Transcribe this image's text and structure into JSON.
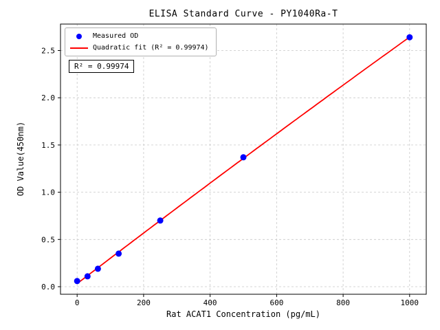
{
  "figure": {
    "background": "#ffffff"
  },
  "chart_data": {
    "type": "scatter",
    "title": "ELISA Standard Curve - PY1040Ra-T",
    "xlabel": "Rat ACAT1 Concentration (pg/mL)",
    "ylabel": "OD Value(450nm)",
    "x": [
      0,
      31.25,
      62.5,
      125,
      250,
      500,
      1000
    ],
    "y": [
      0.06,
      0.11,
      0.19,
      0.35,
      0.7,
      1.37,
      2.64
    ],
    "xlim": [
      -50,
      1050
    ],
    "ylim": [
      -0.08,
      2.78
    ],
    "xticks": [
      0,
      200,
      400,
      600,
      800,
      1000
    ],
    "yticks": [
      0.0,
      0.5,
      1.0,
      1.5,
      2.0,
      2.5
    ],
    "grid": true,
    "legend": {
      "position": "upper-left",
      "entries": [
        {
          "label": "Measured OD",
          "marker": "dot",
          "color": "#0000ff"
        },
        {
          "label": "Quadratic fit (R² = 0.99974)",
          "marker": "line",
          "color": "#ff0000"
        }
      ]
    },
    "annotation": "R² = 0.99974",
    "series": [
      {
        "name": "Measured OD",
        "type": "scatter",
        "color": "#0000ff"
      },
      {
        "name": "Quadratic fit",
        "type": "line",
        "color": "#ff0000"
      }
    ],
    "colors": {
      "point": "#0000ff",
      "fit_line": "#ff0000",
      "grid": "#c8c8c8",
      "axis": "#000000",
      "background": "#ffffff"
    }
  }
}
